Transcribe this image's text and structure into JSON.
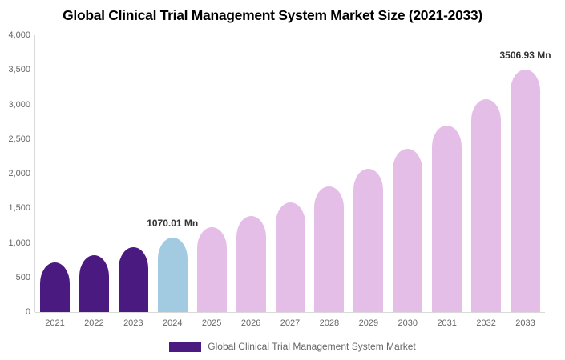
{
  "header": {
    "title": "Global Clinical Trial Management System Market Size (2021-2033)"
  },
  "legend": {
    "label": "Global Clinical Trial Management System Market",
    "swatch_color": "#4B1A80"
  },
  "colors": {
    "historical_bar": "#4B1A80",
    "current_year_bar": "#A2CBE2",
    "forecast_bar": "#E5BEE7",
    "axis_line": "#D9D9D9",
    "tick_text": "#666666",
    "data_label_text": "#333333",
    "title_text": "#000000"
  },
  "chart_data": {
    "type": "bar",
    "title": "Global Clinical Trial Management System Market Size (2021-2033)",
    "unit": "Mn",
    "ylim": [
      0,
      4000
    ],
    "y_tick_step": 500,
    "y_ticks": [
      "0",
      "500",
      "1,000",
      "1,500",
      "2,000",
      "2,500",
      "3,000",
      "3,500",
      "4,000"
    ],
    "grid": false,
    "legend_position": "bottom",
    "series_name": "Global Clinical Trial Management System Market",
    "categories": [
      "2021",
      "2022",
      "2023",
      "2024",
      "2025",
      "2026",
      "2027",
      "2028",
      "2029",
      "2030",
      "2031",
      "2032",
      "2033"
    ],
    "points": [
      {
        "year": "2021",
        "value": 720.35,
        "color": "#4B1A80"
      },
      {
        "year": "2022",
        "value": 821.91,
        "color": "#4B1A80"
      },
      {
        "year": "2023",
        "value": 937.79,
        "color": "#4B1A80"
      },
      {
        "year": "2024",
        "value": 1070.01,
        "color": "#A2CBE2",
        "label": "1070.01 Mn"
      },
      {
        "year": "2025",
        "value": 1220.88,
        "color": "#E5BEE7"
      },
      {
        "year": "2026",
        "value": 1393.02,
        "color": "#E5BEE7"
      },
      {
        "year": "2027",
        "value": 1589.43,
        "color": "#E5BEE7"
      },
      {
        "year": "2028",
        "value": 1813.53,
        "color": "#E5BEE7"
      },
      {
        "year": "2029",
        "value": 2069.23,
        "color": "#E5BEE7"
      },
      {
        "year": "2030",
        "value": 2360.98,
        "color": "#E5BEE7"
      },
      {
        "year": "2031",
        "value": 2693.86,
        "color": "#E5BEE7"
      },
      {
        "year": "2032",
        "value": 3073.68,
        "color": "#E5BEE7"
      },
      {
        "year": "2033",
        "value": 3506.93,
        "color": "#E5BEE7",
        "label": "3506.93 Mn"
      }
    ]
  }
}
